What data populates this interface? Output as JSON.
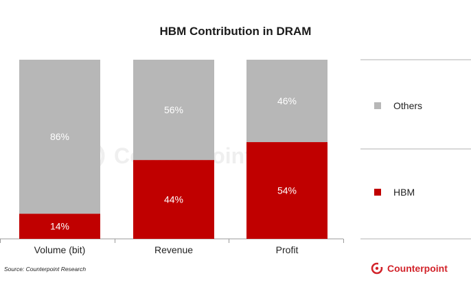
{
  "chart_data": {
    "type": "bar",
    "stacked": true,
    "normalized": true,
    "title": "HBM Contribution in DRAM",
    "categories": [
      "Volume (bit)",
      "Revenue",
      "Profit"
    ],
    "series": [
      {
        "name": "HBM",
        "values": [
          14,
          44,
          54
        ],
        "color": "#c00000"
      },
      {
        "name": "Others",
        "values": [
          86,
          56,
          46
        ],
        "color": "#b7b7b7"
      }
    ],
    "value_labels": {
      "HBM": [
        "14%",
        "44%",
        "54%"
      ],
      "Others": [
        "86%",
        "56%",
        "46%"
      ]
    },
    "legend": [
      {
        "name": "Others",
        "color": "#b7b7b7"
      },
      {
        "name": "HBM",
        "color": "#c00000"
      }
    ],
    "legend_position": "right",
    "ylim": [
      0,
      100
    ],
    "xlabel": "",
    "ylabel": ""
  },
  "source": "Source: Counterpoint Research",
  "brand": "Counterpoint",
  "watermark": "Counterpoint"
}
